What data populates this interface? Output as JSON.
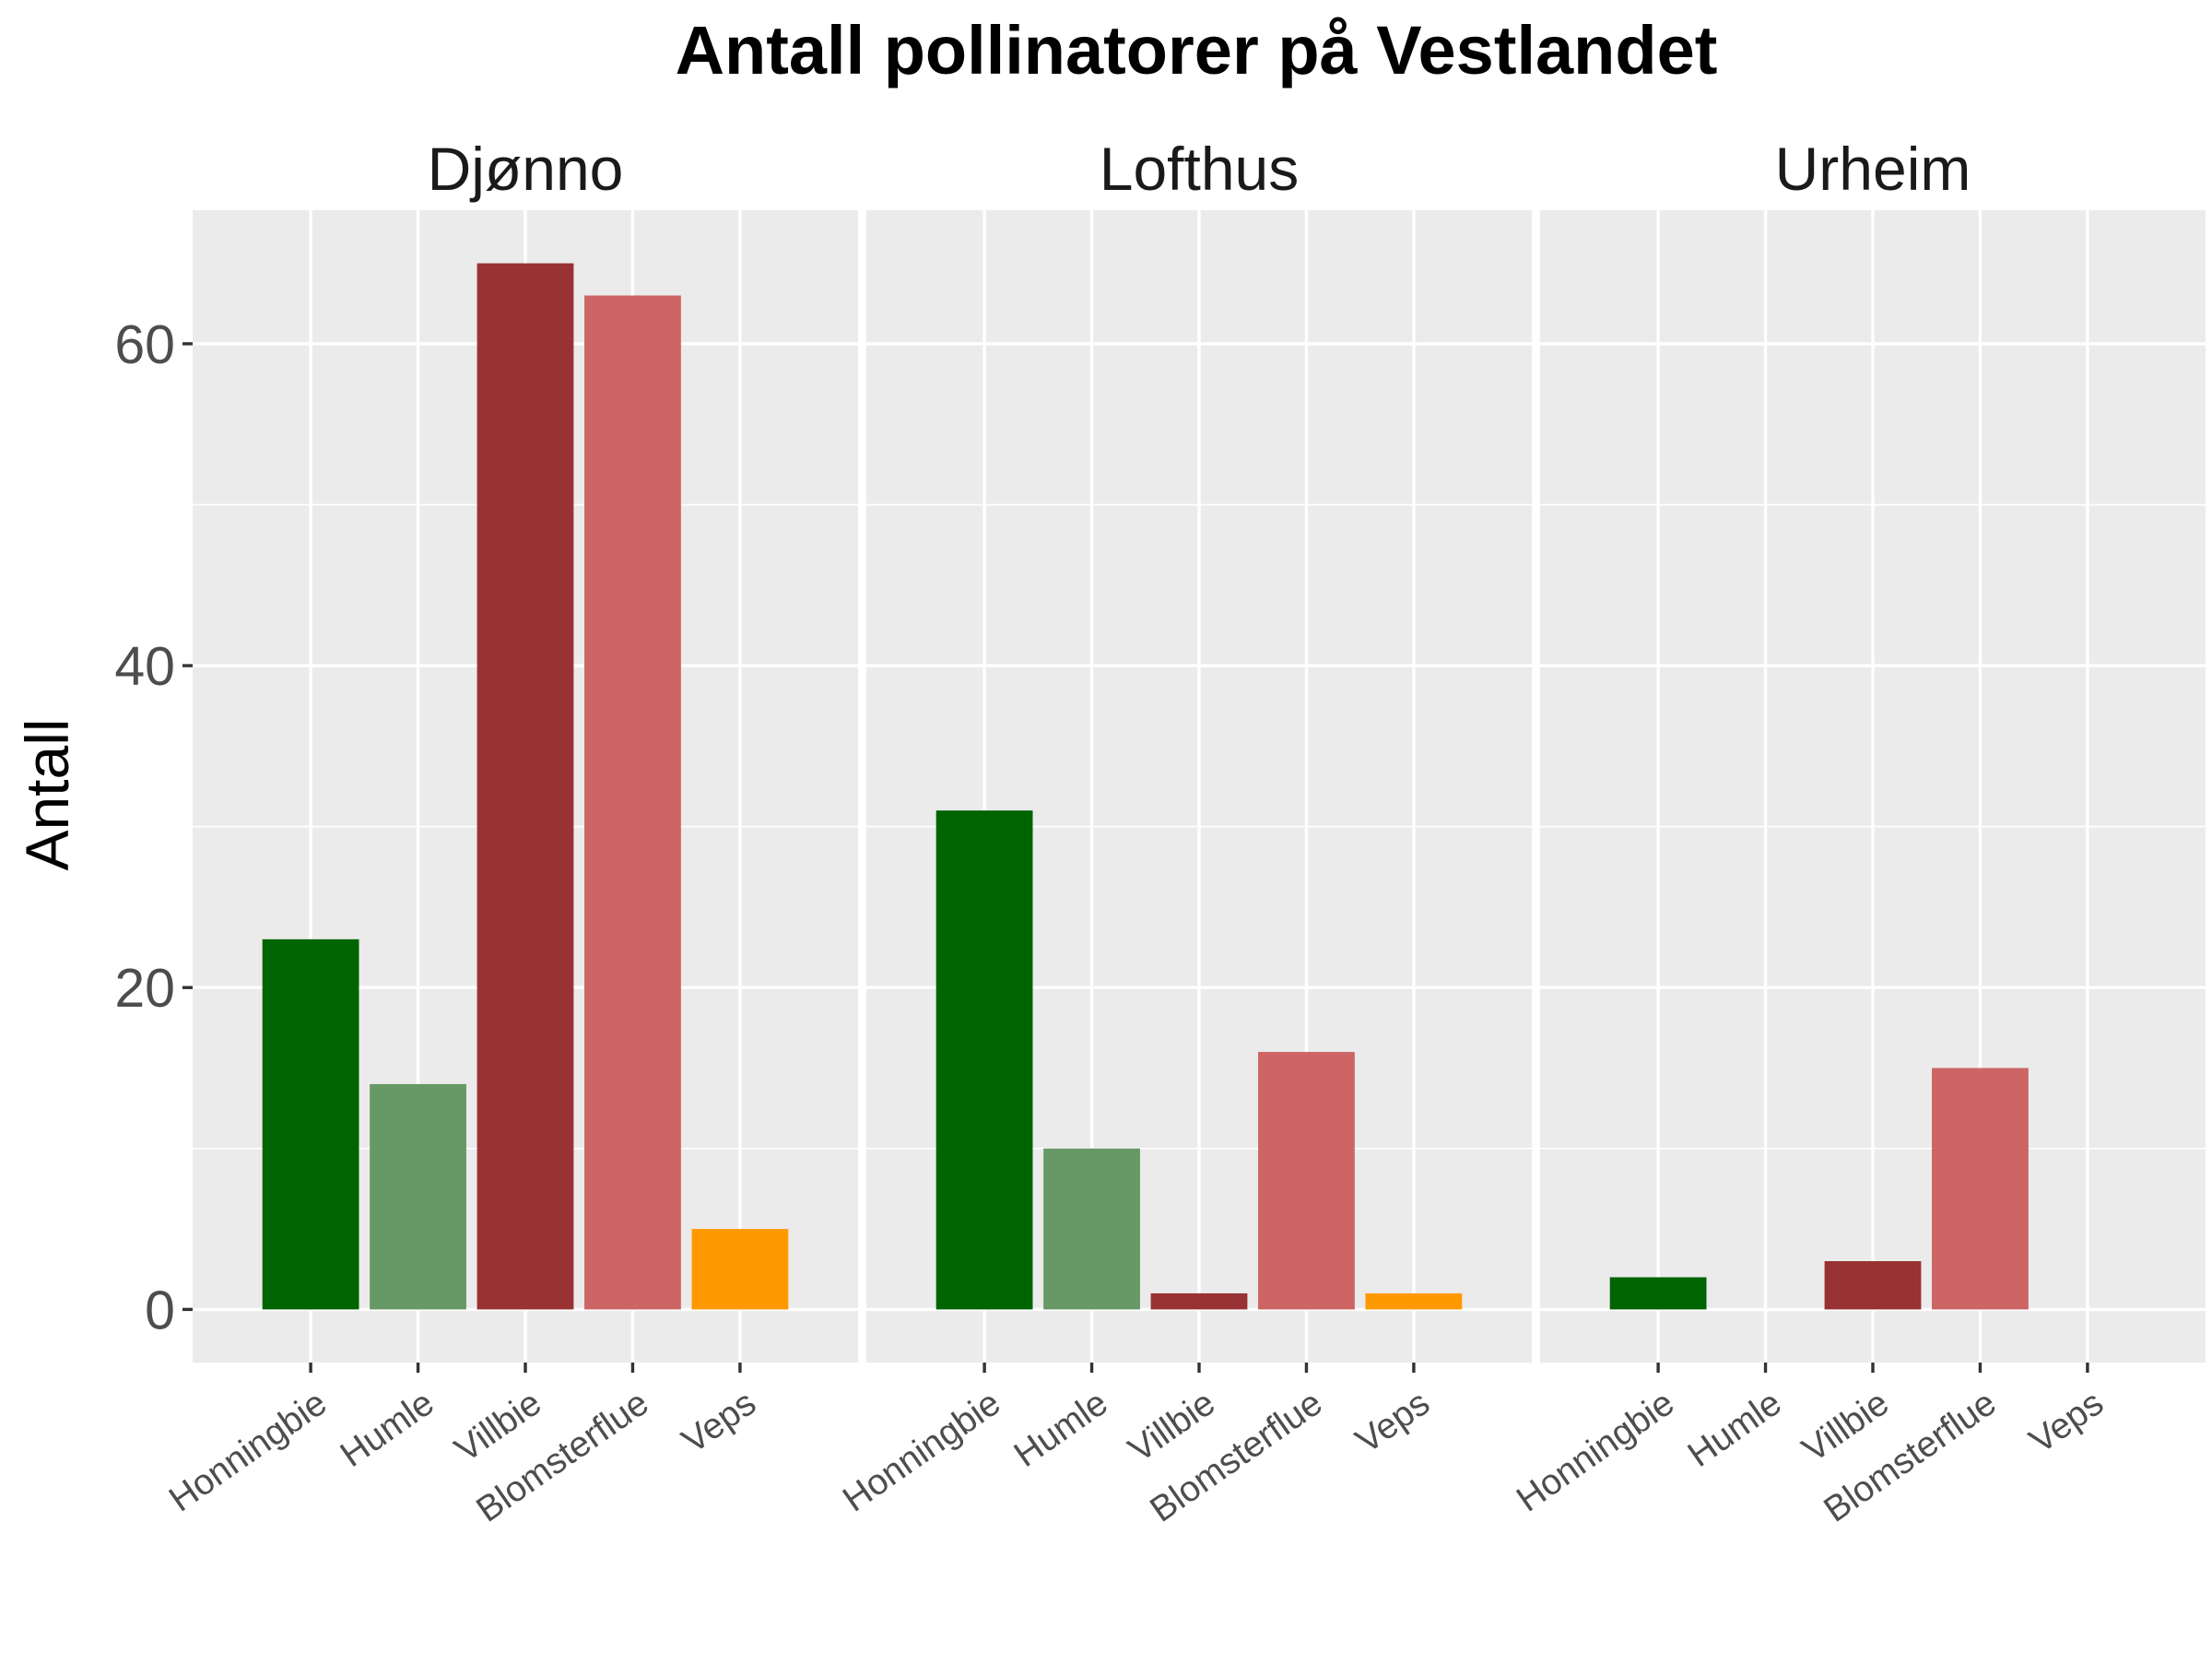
{
  "chart_data": {
    "type": "bar",
    "title": "Antall pollinatorer på Vestlandet",
    "xlabel": "",
    "ylabel": "Antall",
    "ylim": [
      -3.3,
      68.3
    ],
    "yticks": [
      0,
      20,
      40,
      60
    ],
    "grid": true,
    "legend": "none",
    "categories": [
      "Honningbie",
      "Humle",
      "Villbie",
      "Blomsterflue",
      "Veps"
    ],
    "category_colors": {
      "Honningbie": "#006400",
      "Humle": "#679966",
      "Villbie": "#993232",
      "Blomsterflue": "#CD6565",
      "Veps": "#FF9900"
    },
    "panels": [
      {
        "name": "Djønno",
        "values": [
          23,
          14,
          65,
          63,
          5
        ]
      },
      {
        "name": "Lofthus",
        "values": [
          31,
          10,
          1,
          16,
          1
        ]
      },
      {
        "name": "Urheim",
        "values": [
          2,
          0,
          3,
          15,
          0
        ]
      }
    ]
  }
}
